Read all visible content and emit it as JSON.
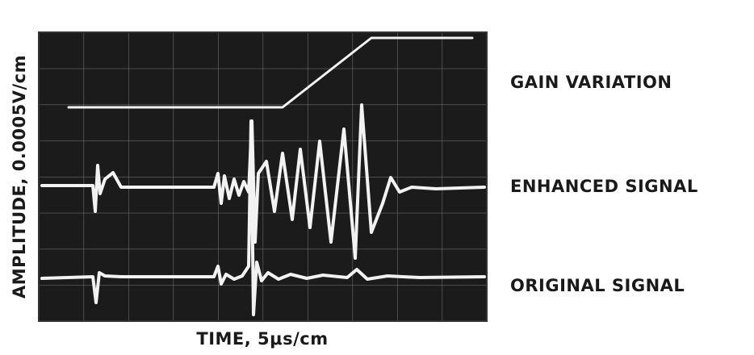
{
  "figure": {
    "y_axis_label": "AMPLITUDE, 0.0005V/cm",
    "x_axis_label": "TIME, 5μs/cm",
    "traces": [
      {
        "label": "GAIN VARIATION"
      },
      {
        "label": "ENHANCED SIGNAL"
      },
      {
        "label": "ORIGINAL SIGNAL"
      }
    ]
  }
}
